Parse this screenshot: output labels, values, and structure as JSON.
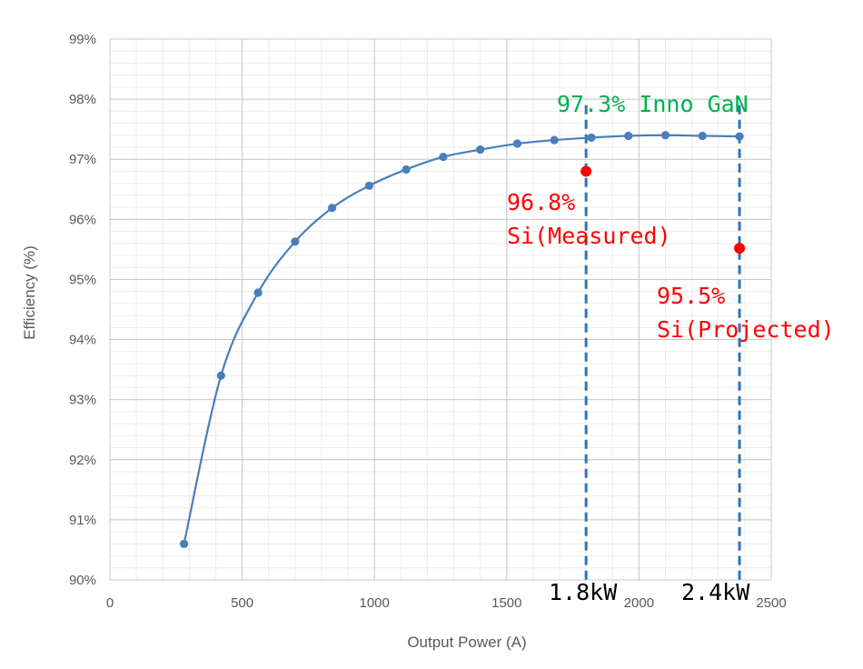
{
  "chart_data": {
    "type": "line",
    "xlabel": "Output Power (A)",
    "ylabel": "Efficiency (%)",
    "xlim": [
      0,
      2500
    ],
    "ylim": [
      90,
      99
    ],
    "x_ticks": [
      0,
      500,
      1000,
      1500,
      2000,
      2500
    ],
    "x_tick_labels": [
      "0",
      "500",
      "1000",
      "1500",
      "2000",
      "2500"
    ],
    "y_ticks": [
      90,
      91,
      92,
      93,
      94,
      95,
      96,
      97,
      98,
      99
    ],
    "y_tick_labels": [
      "90%",
      "91%",
      "92%",
      "93%",
      "94%",
      "95%",
      "96%",
      "97%",
      "98%",
      "99%"
    ],
    "grid": true,
    "minor_grid": true,
    "legend": "none",
    "series": [
      {
        "color": "#4a7ebb",
        "x": [
          280,
          420,
          560,
          700,
          840,
          980,
          1120,
          1260,
          1400,
          1540,
          1680,
          1820,
          1960,
          2100,
          2240,
          2380
        ],
        "y": [
          90.6,
          93.4,
          94.78,
          95.63,
          96.19,
          96.56,
          96.83,
          97.04,
          97.16,
          97.26,
          97.32,
          97.36,
          97.39,
          97.4,
          97.39,
          97.38
        ]
      }
    ],
    "markers": [
      {
        "x": 1800,
        "y": 96.8,
        "color": "#ff0000"
      },
      {
        "x": 2380,
        "y": 95.52,
        "color": "#ff0000"
      }
    ],
    "vlines": [
      {
        "x": 1800,
        "color": "#2e75b6"
      },
      {
        "x": 2380,
        "color": "#2e75b6"
      }
    ],
    "annotations": [
      {
        "id": "gan",
        "text": "97.3% Inno GaN",
        "color": "#00b050"
      },
      {
        "id": "si_meas_val",
        "text": "96.8%",
        "color": "#ff0000"
      },
      {
        "id": "si_meas_lbl",
        "text": "Si(Measured)",
        "color": "#ff0000"
      },
      {
        "id": "si_proj_val",
        "text": "95.5%",
        "color": "#ff0000"
      },
      {
        "id": "si_proj_lbl",
        "text": "Si(Projected)",
        "color": "#ff0000"
      },
      {
        "id": "kw18",
        "text": "1.8kW",
        "color": "#000000"
      },
      {
        "id": "kw24",
        "text": "2.4kW",
        "color": "#000000"
      }
    ]
  }
}
